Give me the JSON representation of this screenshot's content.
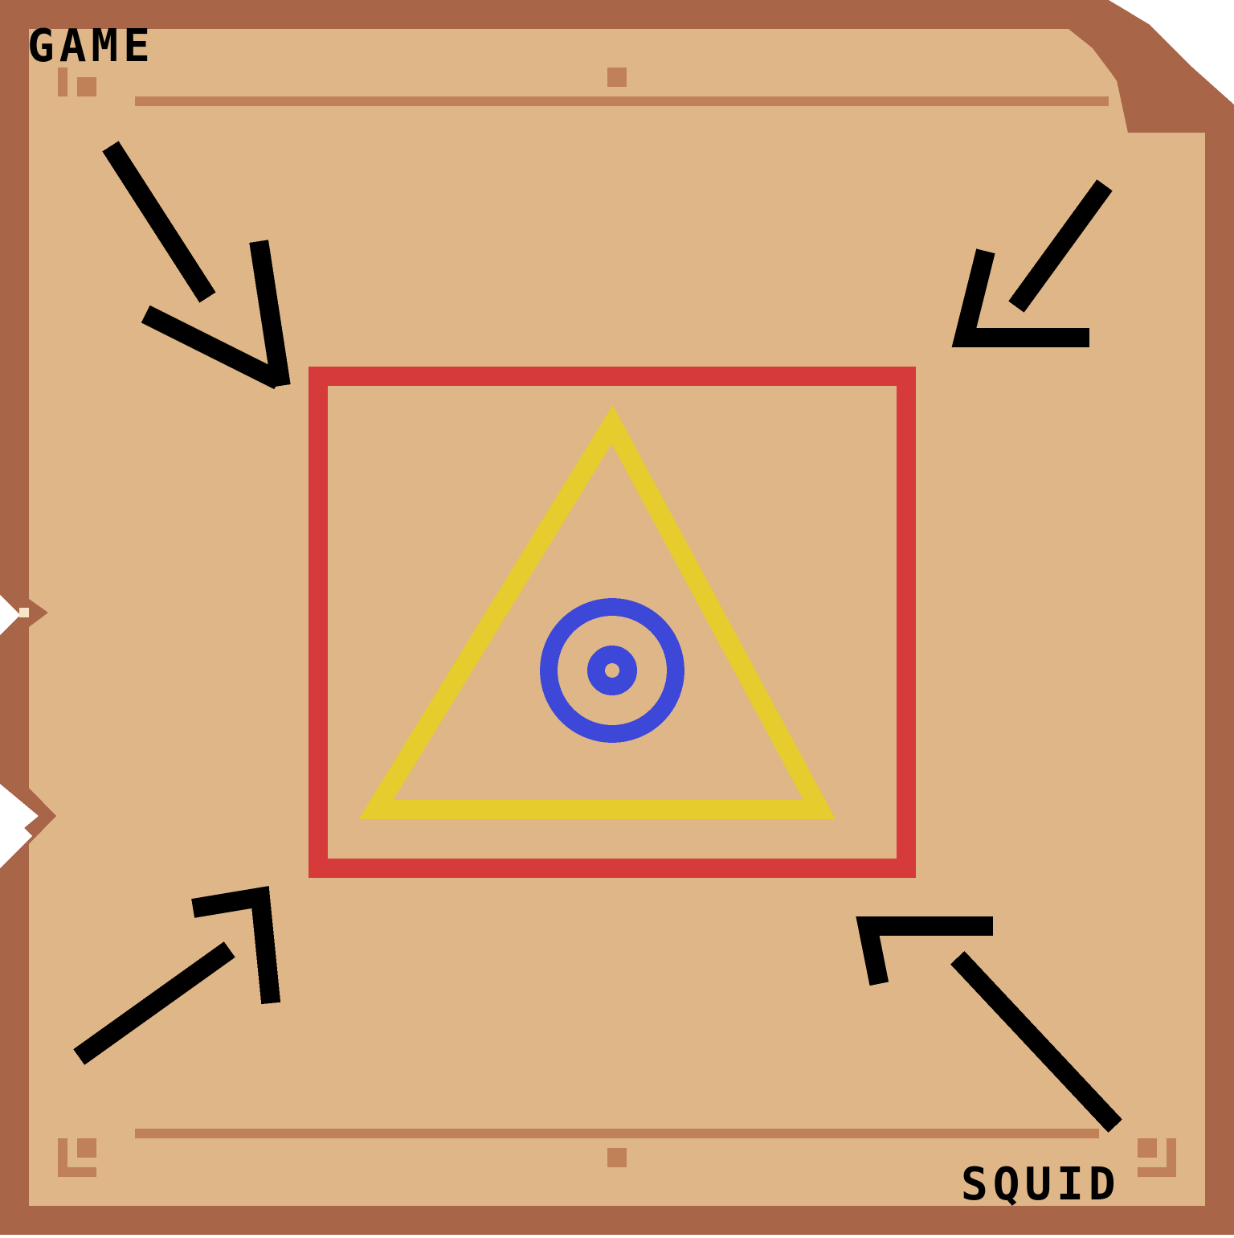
{
  "labels": {
    "top_left": "GAME",
    "bottom_right": "SQUID"
  },
  "colors": {
    "board_outer": "#a86548",
    "board_inner": "#deb687",
    "board_trim": "#c08058",
    "ink": "#000000",
    "frame_red": "#d63a3a",
    "triangle_yellow": "#e6cc2c",
    "circle_blue": "#3d48d8"
  },
  "icons": [
    "arrow-icon",
    "triangle-icon",
    "circle-target-icon",
    "square-frame-icon"
  ]
}
